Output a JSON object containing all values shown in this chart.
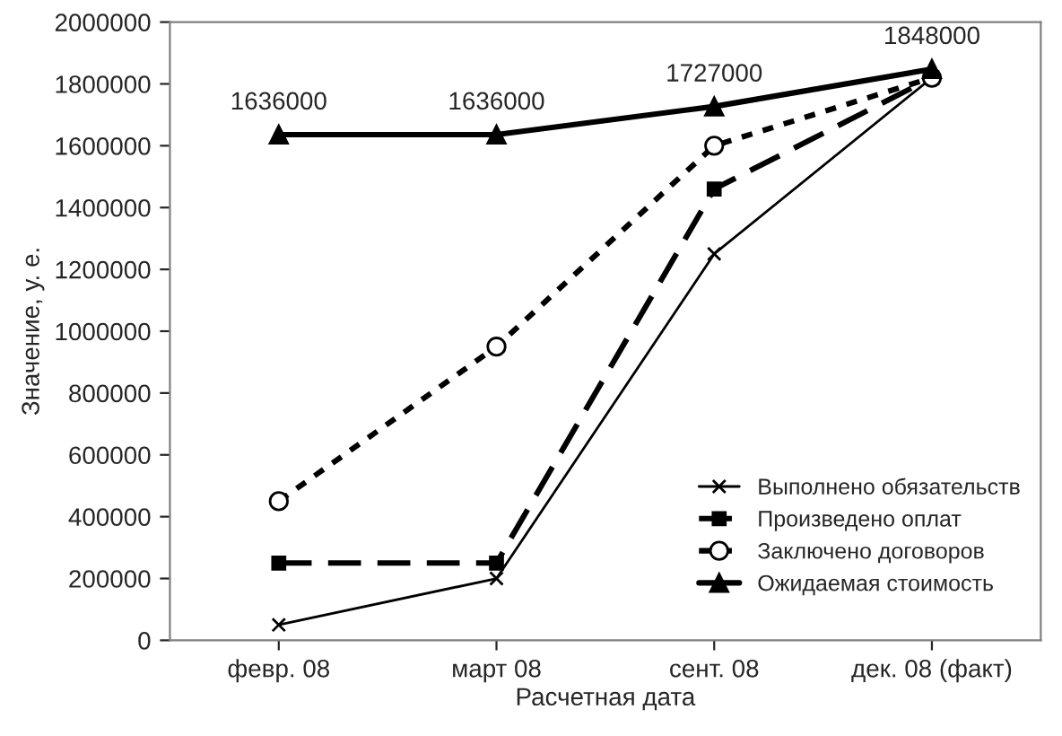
{
  "chart_data": {
    "type": "line",
    "xlabel": "Расчетная дата",
    "ylabel": "Значение, у. е.",
    "categories": [
      "февр. 08",
      "март 08",
      "сент. 08",
      "дек. 08 (факт)"
    ],
    "ylim": [
      0,
      2000000
    ],
    "yticks": [
      0,
      200000,
      400000,
      600000,
      800000,
      1000000,
      1200000,
      1400000,
      1600000,
      1800000,
      2000000
    ],
    "grid": false,
    "legend": "bottom right",
    "series": [
      {
        "name": "Выполнено обязательств",
        "color": "#000000",
        "marker": "cross",
        "line_style": "solid",
        "values": [
          50000,
          200000,
          1250000,
          1820000
        ]
      },
      {
        "name": "Произведено оплат",
        "color": "#000000",
        "marker": "square",
        "line_style": "dashed",
        "values": [
          250000,
          250000,
          1460000,
          1820000
        ]
      },
      {
        "name": "Заключено договоров",
        "color": "#000000",
        "marker": "circle",
        "line_style": "dotted",
        "values": [
          450000,
          950000,
          1600000,
          1820000
        ]
      },
      {
        "name": "Ожидаемая стоимость",
        "color": "#000000",
        "marker": "triangle",
        "line_style": "solid",
        "values": [
          1636000,
          1636000,
          1727000,
          1848000
        ],
        "value_labels": [
          "1636000",
          "1636000",
          "1727000",
          "1848000"
        ]
      }
    ]
  }
}
